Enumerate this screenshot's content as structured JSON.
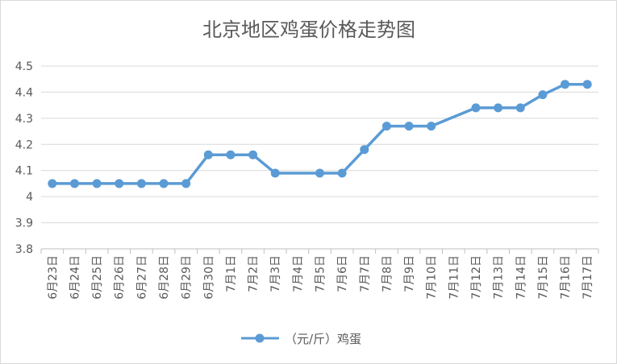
{
  "chart_data": {
    "type": "line",
    "title": "北京地区鸡蛋价格走势图",
    "categories": [
      "6月23日",
      "6月24日",
      "6月25日",
      "6月26日",
      "6月27日",
      "6月28日",
      "6月29日",
      "6月30日",
      "7月1日",
      "7月2日",
      "7月3日",
      "7月4日",
      "7月5日",
      "7月6日",
      "7月7日",
      "7月8日",
      "7月9日",
      "7月10日",
      "7月11日",
      "7月12日",
      "7月13日",
      "7月14日",
      "7月15日",
      "7月16日",
      "7月17日"
    ],
    "series": [
      {
        "name": "（元/斤）鸡蛋",
        "values": [
          4.05,
          4.05,
          4.05,
          4.05,
          4.05,
          4.05,
          4.05,
          4.16,
          4.16,
          4.16,
          4.09,
          null,
          4.09,
          4.09,
          4.18,
          4.27,
          4.27,
          4.27,
          null,
          4.34,
          4.34,
          4.34,
          4.39,
          4.43,
          4.43
        ],
        "color": "#5b9bd5"
      }
    ],
    "ylim": [
      3.8,
      4.5
    ],
    "yticks": [
      3.8,
      3.9,
      4,
      4.1,
      4.2,
      4.3,
      4.4,
      4.5
    ],
    "grid": true,
    "legend": "bottom"
  }
}
